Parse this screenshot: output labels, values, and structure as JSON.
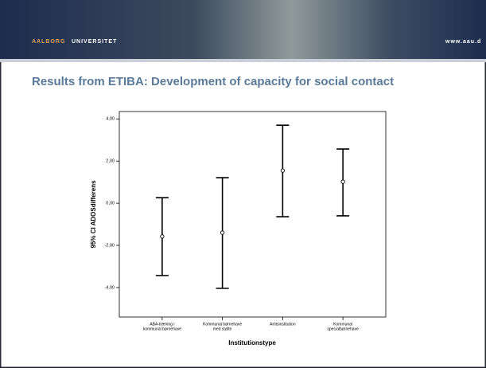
{
  "header": {
    "logo_word1": "AALBORG",
    "logo_word2": "UNIVERSITET",
    "url": "www.aau.d"
  },
  "chart_data": {
    "type": "errorbar",
    "title": "Results from ETIBA: Development of capacity for social contact",
    "x_label": "Institutionstype",
    "y_label": "95% CI ADOSdifferens",
    "categories": [
      [
        "ABA-træning i",
        "kommunal børnehave"
      ],
      [
        "Kommunal børnehave",
        "med støtte"
      ],
      [
        "Amtsinstitution"
      ],
      [
        "Kommunal",
        "specialbørnehave"
      ]
    ],
    "values": [
      -1.58,
      -1.4,
      1.55,
      1.02
    ],
    "ci_low": [
      -3.43,
      -4.04,
      -0.64,
      -0.6
    ],
    "ci_high": [
      0.26,
      1.21,
      3.7,
      2.57
    ],
    "ylim": [
      -5.4,
      4.35
    ],
    "yticks": [
      {
        "value": -4,
        "label": "-4,00"
      },
      {
        "value": -2,
        "label": "-2,00"
      },
      {
        "value": 0,
        "label": "0,00"
      },
      {
        "value": 2,
        "label": "2,00"
      },
      {
        "value": 4,
        "label": "4,00"
      }
    ],
    "color": "#000000"
  }
}
